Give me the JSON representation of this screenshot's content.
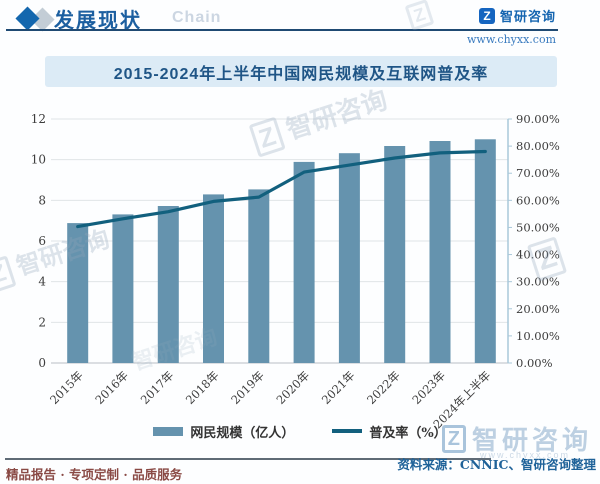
{
  "header": {
    "section_title": "发展现状",
    "watermark_text": "Chain",
    "brand_name": "智研咨询",
    "brand_logo_glyph": "Z",
    "brand_url": "www.chyxx.com"
  },
  "chart_data": {
    "type": "combo_bar_line",
    "title": "2015-2024年上半年中国网民规模及互联网普及率",
    "categories": [
      "2015年",
      "2016年",
      "2017年",
      "2018年",
      "2019年",
      "2020年",
      "2021年",
      "2022年",
      "2023年",
      "2024年上半年"
    ],
    "series": [
      {
        "name": "网民规模（亿人）",
        "type": "bar",
        "axis": "left",
        "color": "#6593AE",
        "values": [
          6.88,
          7.31,
          7.72,
          8.29,
          8.54,
          9.89,
          10.32,
          10.67,
          10.92,
          11.0
        ]
      },
      {
        "name": "普及率（%）",
        "type": "line",
        "axis": "right",
        "color": "#12607E",
        "values": [
          50.3,
          53.2,
          55.8,
          59.6,
          61.2,
          70.4,
          73.0,
          75.6,
          77.5,
          78.0
        ]
      }
    ],
    "left_axis": {
      "min": 0,
      "max": 12,
      "step": 2,
      "ticks": [
        "0",
        "2",
        "4",
        "6",
        "8",
        "10",
        "12"
      ]
    },
    "right_axis": {
      "min": 0,
      "max": 90,
      "step": 10,
      "ticks": [
        "0.00%",
        "10.00%",
        "20.00%",
        "30.00%",
        "40.00%",
        "50.00%",
        "60.00%",
        "70.00%",
        "80.00%",
        "90.00%"
      ]
    },
    "grid": true,
    "legend_position": "bottom"
  },
  "footer": {
    "left_text": "精品报告 · 专项定制 · 品质服务",
    "source_text": "资料来源：CNNIC、智研咨询整理"
  },
  "watermark": {
    "brand": "智研咨询",
    "glyph": "Z",
    "url": "www.chyxx.com"
  },
  "colors": {
    "bar": "#6593AE",
    "line": "#12607E",
    "accent_blue": "#1C5FA0",
    "title_bg": "#DCEBF6",
    "footer_maroon": "#8A4A45"
  }
}
